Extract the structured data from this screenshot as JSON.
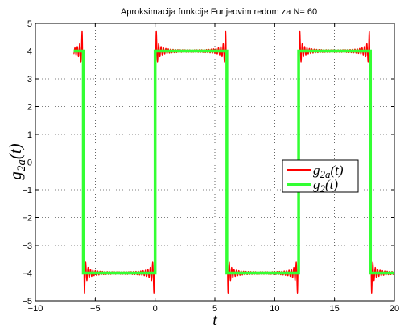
{
  "chart_data": {
    "type": "line",
    "title": "Aproksimacija funkcije Furijeovim redom za N= 60",
    "xlabel": "t",
    "ylabel": "g_{2a}(t)",
    "xlim": [
      -10,
      20
    ],
    "ylim": [
      -5,
      5
    ],
    "xticks": [
      -10,
      -5,
      0,
      5,
      10,
      15,
      20
    ],
    "yticks": [
      -5,
      -4,
      -3,
      -2,
      -1,
      0,
      1,
      2,
      3,
      4,
      5
    ],
    "xtick_labels": [
      "−10",
      "−5",
      "0",
      "5",
      "10",
      "15",
      "20"
    ],
    "ytick_labels": [
      "−5",
      "−4",
      "−3",
      "−2",
      "−1",
      "0",
      "1",
      "2",
      "3",
      "4",
      "5"
    ],
    "grid": true,
    "legend_position": "right",
    "series": [
      {
        "name": "g2a(t)",
        "legend_main": "g",
        "legend_sub": "2a",
        "legend_suffix": "(t)",
        "color": "#ff0000",
        "kind": "fourier_approximation",
        "harmonics": 60,
        "period": 12,
        "high": 4,
        "low": -4,
        "x_start": -6.8,
        "x_end": 20
      },
      {
        "name": "g2(t)",
        "legend_main": "g",
        "legend_sub": "2",
        "legend_suffix": "(t)",
        "color": "#33ff33",
        "kind": "square_wave",
        "x": [
          -6.8,
          -6,
          -6,
          0,
          0,
          6,
          6,
          12,
          12,
          18,
          18,
          20
        ],
        "y": [
          4,
          4,
          -4,
          -4,
          4,
          4,
          -4,
          -4,
          4,
          4,
          -4,
          -4
        ]
      }
    ]
  }
}
